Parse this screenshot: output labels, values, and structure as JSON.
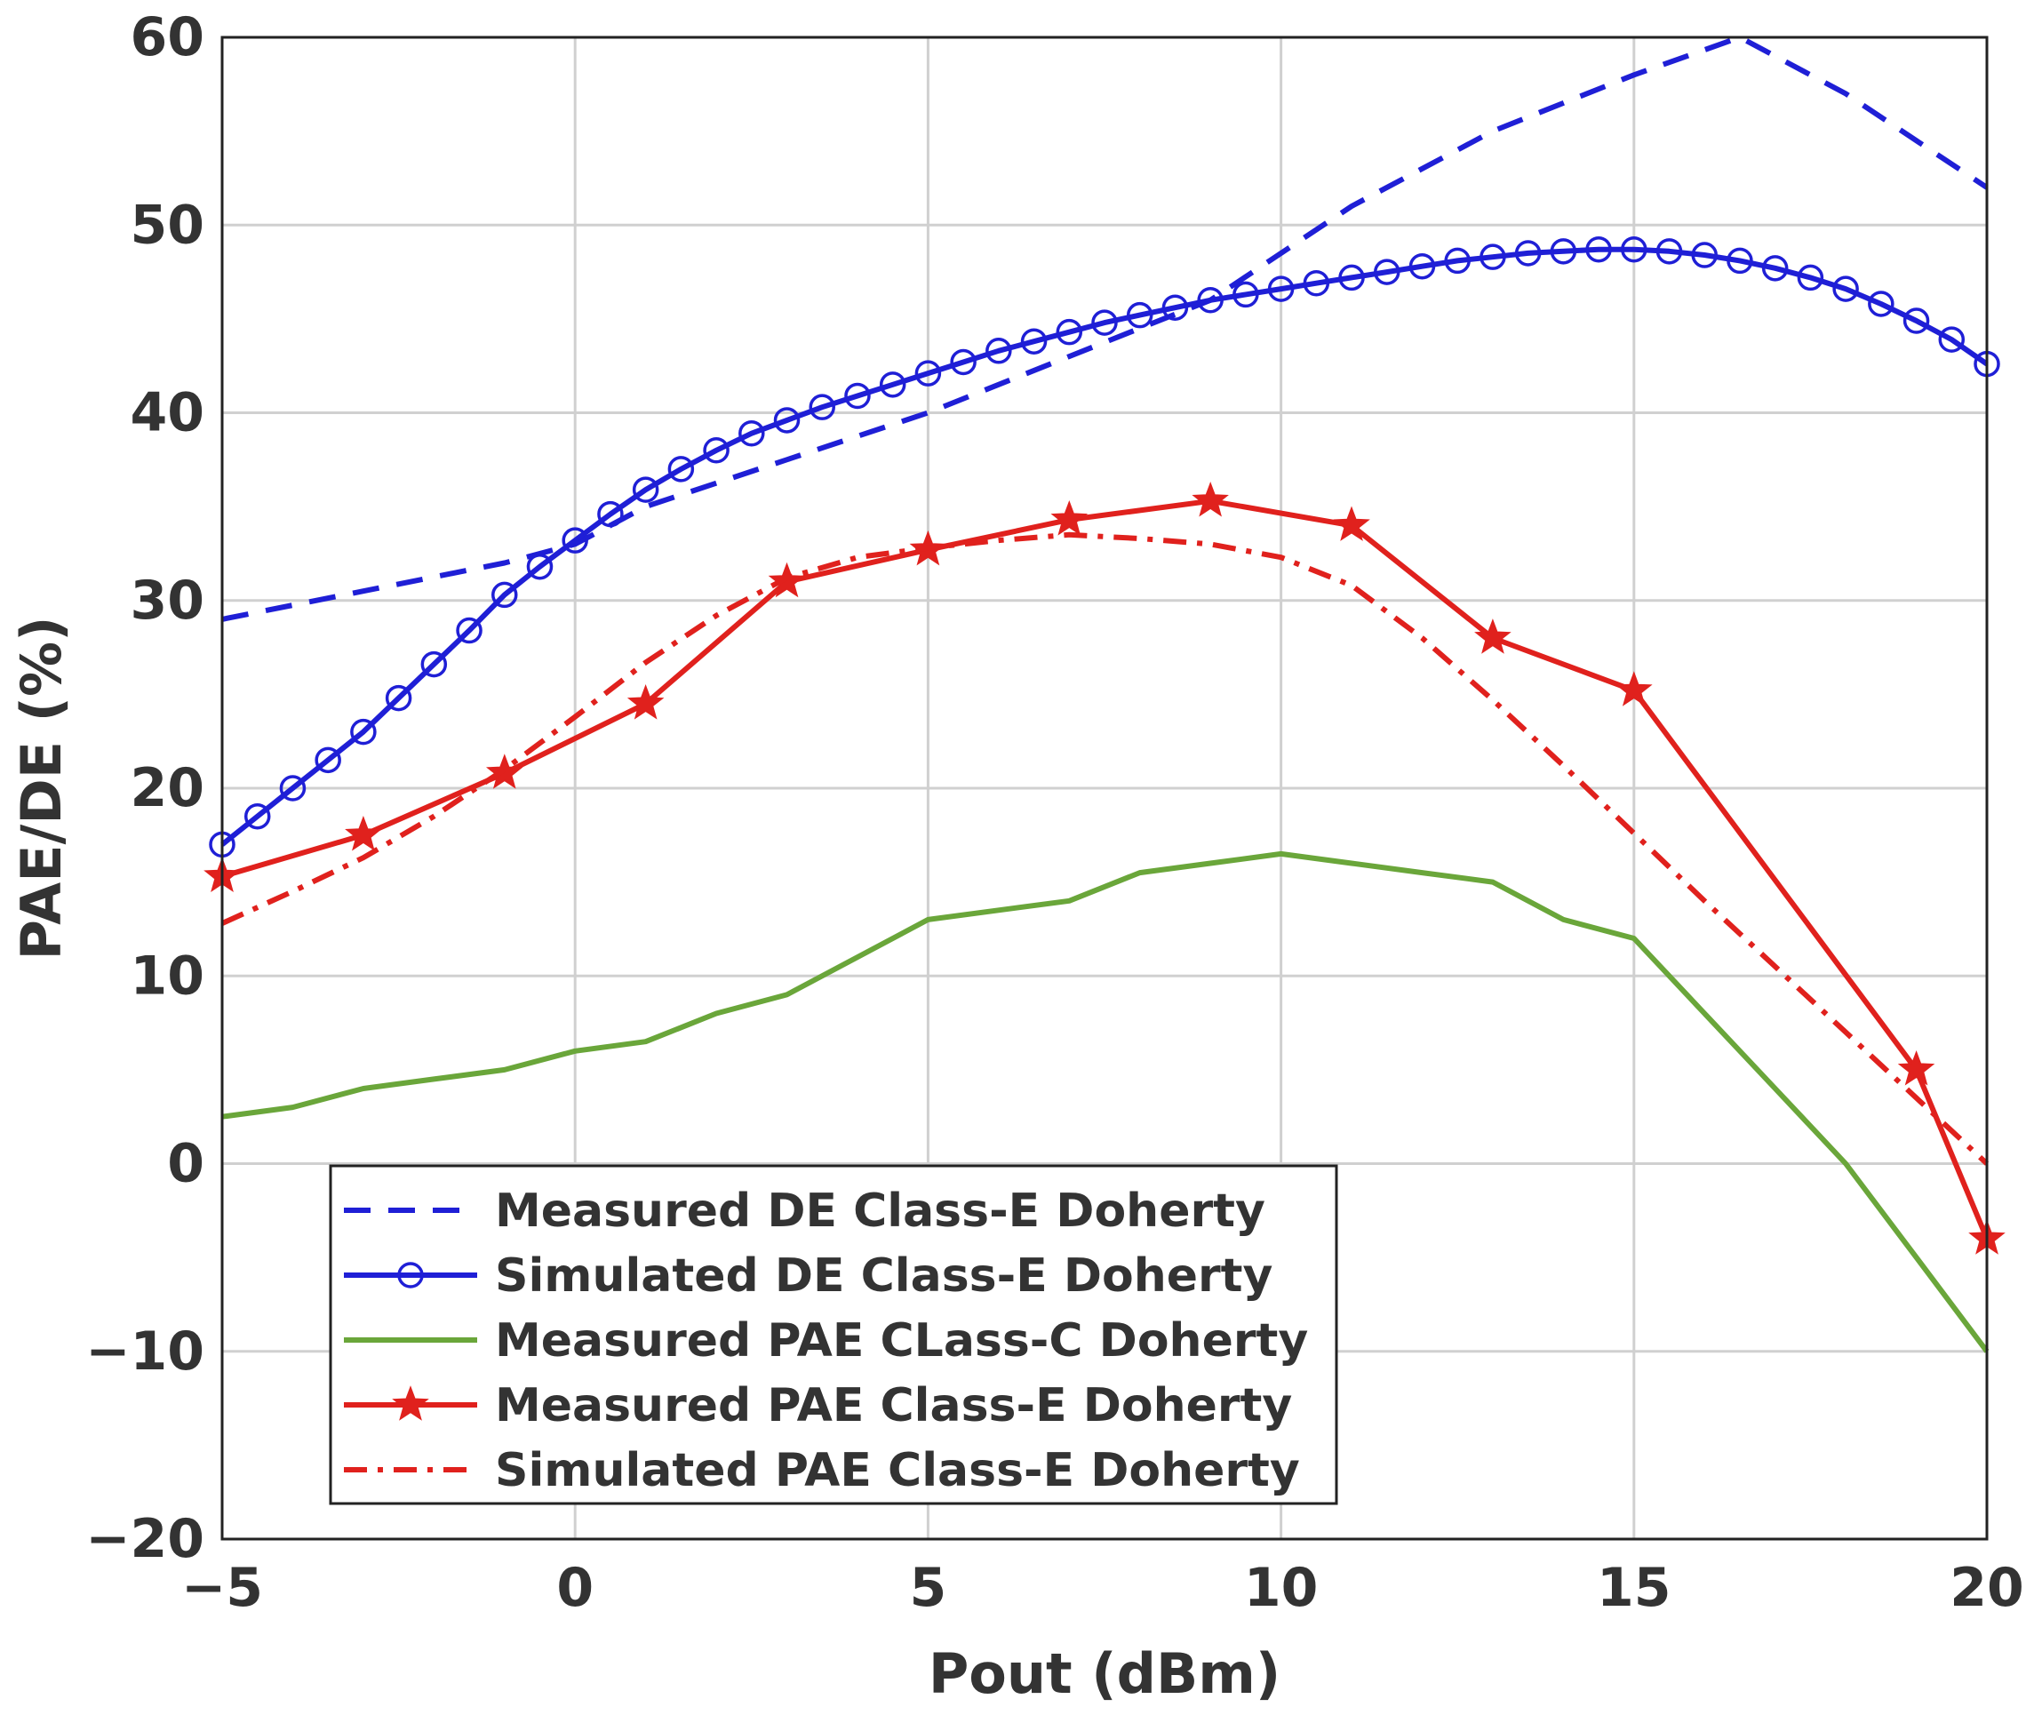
{
  "chart_data": {
    "type": "line",
    "title": "",
    "xlabel": "Pout (dBm)",
    "ylabel": "PAE/DE (%)",
    "xlim": [
      -5,
      20
    ],
    "ylim": [
      -20,
      60
    ],
    "xticks": [
      -5,
      0,
      5,
      10,
      15,
      20
    ],
    "yticks": [
      -20,
      -10,
      0,
      10,
      20,
      30,
      40,
      50,
      60
    ],
    "grid": true,
    "legend_position": "bottom-left",
    "series": [
      {
        "name": "Measured DE Class-E Doherty",
        "color": "#1f1fd6",
        "style": "dashed",
        "marker": "none",
        "x": [
          -5,
          -3,
          -1,
          0,
          1,
          3,
          5,
          7,
          9,
          11,
          13,
          15,
          16.5,
          18,
          20
        ],
        "y": [
          29,
          30.5,
          32,
          33,
          35,
          37.5,
          40,
          43,
          46,
          51,
          55,
          58,
          60,
          57,
          52
        ]
      },
      {
        "name": "Simulated DE Class-E Doherty",
        "color": "#1f1fd6",
        "style": "solid",
        "marker": "circle",
        "x": [
          -5,
          -4.5,
          -4,
          -3.5,
          -3,
          -2.5,
          -2,
          -1.5,
          -1,
          -0.5,
          0,
          0.5,
          1,
          1.5,
          2,
          2.5,
          3,
          3.5,
          4,
          4.5,
          5,
          5.5,
          6,
          6.5,
          7,
          7.5,
          8,
          8.5,
          9,
          9.5,
          10,
          10.5,
          11,
          11.5,
          12,
          12.5,
          13,
          13.5,
          14,
          14.5,
          15,
          15.5,
          16,
          16.5,
          17,
          17.5,
          18,
          18.5,
          19,
          19.5,
          20
        ],
        "y": [
          17,
          18.5,
          20,
          21.5,
          23,
          24.8,
          26.6,
          28.4,
          30.3,
          31.8,
          33.2,
          34.6,
          35.9,
          37,
          38,
          38.9,
          39.6,
          40.3,
          40.9,
          41.5,
          42.1,
          42.7,
          43.3,
          43.8,
          44.3,
          44.8,
          45.2,
          45.6,
          46,
          46.3,
          46.6,
          46.9,
          47.2,
          47.5,
          47.8,
          48.1,
          48.3,
          48.5,
          48.6,
          48.7,
          48.7,
          48.6,
          48.4,
          48.1,
          47.7,
          47.2,
          46.6,
          45.8,
          44.9,
          43.9,
          42.6
        ]
      },
      {
        "name": "Measured PAE CLass-C Doherty",
        "color": "#6aa63a",
        "style": "solid",
        "marker": "none",
        "x": [
          -5,
          -4,
          -3,
          -2,
          -1,
          0,
          1,
          2,
          3,
          4,
          5,
          6,
          7,
          8,
          9,
          10,
          11,
          12,
          13,
          14,
          15,
          16,
          17,
          18,
          19,
          20
        ],
        "y": [
          2.5,
          3,
          4,
          4.5,
          5,
          6,
          6.5,
          8,
          9,
          11,
          13,
          13.5,
          14,
          15.5,
          16,
          16.5,
          16,
          15.5,
          15,
          13,
          12,
          8,
          4,
          0,
          -5,
          -10
        ]
      },
      {
        "name": "Measured PAE Class-E Doherty",
        "color": "#e0211d",
        "style": "solid",
        "marker": "star",
        "x": [
          -5,
          -3,
          -1,
          1,
          3,
          5,
          7,
          9,
          11,
          13,
          15,
          19,
          20
        ],
        "y": [
          15.3,
          17.5,
          20.8,
          24.5,
          31,
          32.7,
          34.3,
          35.3,
          34,
          28,
          25.2,
          5,
          -4
        ]
      },
      {
        "name": "Simulated PAE Class-E Doherty",
        "color": "#e0211d",
        "style": "dashdot",
        "marker": "none",
        "x": [
          -5,
          -4,
          -3,
          -2,
          -1,
          0,
          1,
          2,
          3,
          4,
          5,
          6,
          7,
          8,
          9,
          10,
          11,
          12,
          13,
          14,
          15,
          16,
          17,
          18,
          19,
          20
        ],
        "y": [
          12.8,
          14.5,
          16.3,
          18.5,
          21,
          23.8,
          26.7,
          29.2,
          31.2,
          32.3,
          32.8,
          33.2,
          33.5,
          33.3,
          33,
          32.3,
          30.8,
          28,
          24.7,
          21.2,
          17.6,
          14,
          10.5,
          7,
          3.5,
          0
        ]
      }
    ]
  }
}
